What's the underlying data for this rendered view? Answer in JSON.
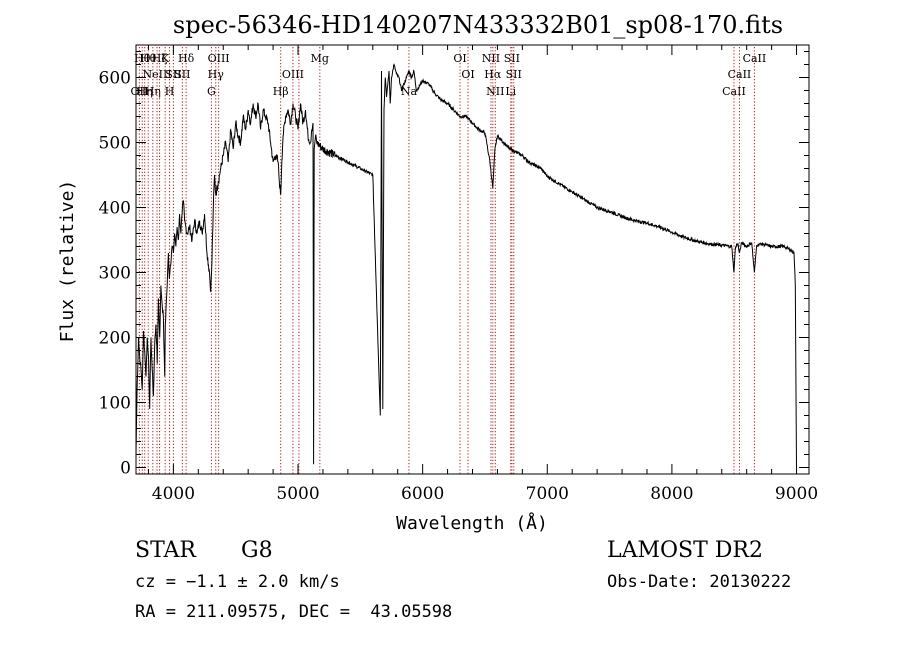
{
  "chart_data": {
    "type": "line",
    "title": "spec-56346-HD140207N433332B01_sp08-170.fits",
    "xlabel": "Wavelength (Å)",
    "ylabel": "Flux (relative)",
    "xlim": [
      3700,
      9100
    ],
    "ylim": [
      -10,
      650
    ],
    "xticks": [
      4000,
      5000,
      6000,
      7000,
      8000,
      9000
    ],
    "yticks": [
      0,
      100,
      200,
      300,
      400,
      500,
      600
    ],
    "grid": false,
    "series": [
      {
        "color": "#000000",
        "x": [
          3700,
          3710,
          3720,
          3730,
          3740,
          3750,
          3760,
          3770,
          3780,
          3790,
          3800,
          3810,
          3820,
          3830,
          3840,
          3850,
          3860,
          3870,
          3880,
          3890,
          3900,
          3910,
          3920,
          3930,
          3935,
          3940,
          3950,
          3960,
          3968,
          3975,
          3990,
          4000,
          4010,
          4020,
          4030,
          4040,
          4050,
          4060,
          4070,
          4080,
          4090,
          4100,
          4110,
          4130,
          4150,
          4170,
          4190,
          4210,
          4230,
          4250,
          4270,
          4290,
          4300,
          4310,
          4320,
          4330,
          4340,
          4360,
          4380,
          4400,
          4420,
          4440,
          4460,
          4480,
          4500,
          4520,
          4540,
          4560,
          4580,
          4600,
          4620,
          4640,
          4660,
          4680,
          4700,
          4720,
          4740,
          4760,
          4780,
          4800,
          4820,
          4840,
          4850,
          4861,
          4870,
          4880,
          4900,
          4920,
          4940,
          4960,
          4980,
          5000,
          5020,
          5040,
          5060,
          5080,
          5100,
          5110,
          5120,
          5125,
          5130,
          5140,
          5150,
          5200,
          5300,
          5400,
          5500,
          5600,
          5650,
          5660,
          5670,
          5680,
          5690,
          5700,
          5710,
          5720,
          5730,
          5740,
          5750,
          5770,
          5790,
          5810,
          5830,
          5850,
          5870,
          5890,
          5910,
          5930,
          5950,
          6000,
          6050,
          6100,
          6150,
          6200,
          6250,
          6300,
          6350,
          6400,
          6450,
          6500,
          6540,
          6563,
          6580,
          6600,
          6650,
          6700,
          6750,
          6800,
          6850,
          6900,
          6950,
          7000,
          7100,
          7200,
          7300,
          7400,
          7500,
          7600,
          7700,
          7800,
          7900,
          8000,
          8100,
          8200,
          8300,
          8400,
          8480,
          8498,
          8510,
          8530,
          8542,
          8560,
          8600,
          8640,
          8662,
          8680,
          8720,
          8800,
          8900,
          8950,
          8980,
          8990,
          9000
        ],
        "y": [
          20,
          130,
          200,
          170,
          150,
          120,
          210,
          180,
          140,
          200,
          170,
          90,
          200,
          150,
          110,
          190,
          220,
          160,
          260,
          200,
          280,
          250,
          230,
          140,
          220,
          240,
          280,
          330,
          290,
          310,
          340,
          330,
          360,
          340,
          370,
          350,
          390,
          360,
          390,
          410,
          380,
          370,
          360,
          370,
          350,
          380,
          360,
          380,
          360,
          390,
          330,
          300,
          270,
          320,
          400,
          450,
          420,
          440,
          460,
          480,
          500,
          470,
          520,
          490,
          530,
          510,
          500,
          540,
          520,
          550,
          530,
          560,
          540,
          560,
          520,
          550,
          540,
          530,
          500,
          470,
          480,
          470,
          440,
          420,
          470,
          510,
          540,
          550,
          530,
          560,
          540,
          520,
          560,
          530,
          550,
          510,
          500,
          520,
          530,
          5,
          490,
          510,
          500,
          490,
          480,
          470,
          460,
          450,
          140,
          80,
          610,
          90,
          550,
          600,
          570,
          590,
          610,
          560,
          600,
          620,
          605,
          600,
          580,
          590,
          600,
          610,
          600,
          610,
          580,
          595,
          590,
          575,
          565,
          560,
          550,
          540,
          540,
          530,
          520,
          515,
          470,
          430,
          490,
          510,
          500,
          490,
          485,
          480,
          470,
          465,
          460,
          448,
          436,
          424,
          412,
          400,
          394,
          386,
          380,
          376,
          370,
          362,
          354,
          348,
          344,
          342,
          340,
          300,
          340,
          344,
          330,
          346,
          340,
          346,
          300,
          342,
          344,
          340,
          340,
          335,
          330,
          280,
          0
        ]
      }
    ],
    "line_markers": [
      {
        "wavelength": 3727,
        "label": "OII",
        "row": 3
      },
      {
        "wavelength": 3750,
        "label": "Hθ",
        "row": 1
      },
      {
        "wavelength": 3770,
        "label": "Hη",
        "row": 3
      },
      {
        "wavelength": 3798,
        "label": "Hθ",
        "row": 1
      },
      {
        "wavelength": 3835,
        "label": "Hη",
        "row": 3
      },
      {
        "wavelength": 3869,
        "label": "NeIII",
        "row": 2
      },
      {
        "wavelength": 3889,
        "label": "Hζ",
        "row": 1
      },
      {
        "wavelength": 3934,
        "label": "K",
        "row": 1
      },
      {
        "wavelength": 3969,
        "label": "H",
        "row": 3
      },
      {
        "wavelength": 4000,
        "label": "SII",
        "row": 2
      },
      {
        "wavelength": 4072,
        "label": "SII",
        "row": 2
      },
      {
        "wavelength": 4102,
        "label": "Hδ",
        "row": 1
      },
      {
        "wavelength": 4305,
        "label": "G",
        "row": 3
      },
      {
        "wavelength": 4340,
        "label": "Hγ",
        "row": 2
      },
      {
        "wavelength": 4363,
        "label": "OIII",
        "row": 1
      },
      {
        "wavelength": 4861,
        "label": "Hβ",
        "row": 3
      },
      {
        "wavelength": 4959,
        "label": "OIII",
        "row": 2
      },
      {
        "wavelength": 5007,
        "label": "",
        "row": 0
      },
      {
        "wavelength": 5175,
        "label": "Mg",
        "row": 1
      },
      {
        "wavelength": 5890,
        "label": "Na",
        "row": 3
      },
      {
        "wavelength": 6300,
        "label": "OI",
        "row": 1
      },
      {
        "wavelength": 6364,
        "label": "OI",
        "row": 2
      },
      {
        "wavelength": 6548,
        "label": "NII",
        "row": 1
      },
      {
        "wavelength": 6563,
        "label": "Hα",
        "row": 2
      },
      {
        "wavelength": 6583,
        "label": "NII",
        "row": 3
      },
      {
        "wavelength": 6707,
        "label": "Li",
        "row": 3
      },
      {
        "wavelength": 6716,
        "label": "SII",
        "row": 1
      },
      {
        "wavelength": 6731,
        "label": "SII",
        "row": 2
      },
      {
        "wavelength": 8498,
        "label": "CaII",
        "row": 3
      },
      {
        "wavelength": 8542,
        "label": "CaII",
        "row": 2
      },
      {
        "wavelength": 8662,
        "label": "CaII",
        "row": 1
      }
    ]
  },
  "info": {
    "object_class": "STAR",
    "subclass": "G8",
    "survey": "LAMOST DR2",
    "cz": "cz = −1.1 ± 2.0 km/s",
    "obs_date": "Obs-Date: 20130222",
    "coords": "RA = 211.09575, DEC =  43.05598"
  }
}
